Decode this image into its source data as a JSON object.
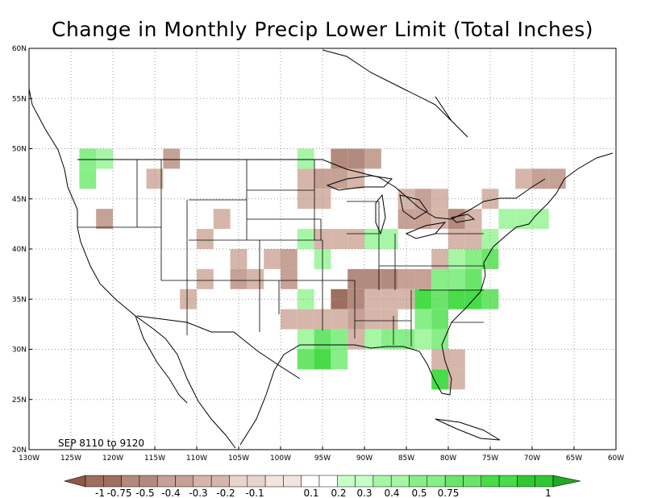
{
  "title": "Change in Monthly Precip Lower Limit (Total Inches)",
  "period": "SEP 8110 to 9120",
  "lat_labels": [
    "60N",
    "55N",
    "50N",
    "45N",
    "40N",
    "35N",
    "30N",
    "25N",
    "20N"
  ],
  "lon_labels": [
    "130W",
    "125W",
    "120W",
    "115W",
    "110W",
    "105W",
    "100W",
    "95W",
    "90W",
    "85W",
    "80W",
    "75W",
    "70W",
    "65W",
    "60W"
  ],
  "colorbar": {
    "labels": [
      "-1",
      "-0.75",
      "-0.5",
      "-0.4",
      "-0.3",
      "-0.2",
      "-0.1",
      "0.1",
      "0.2",
      "0.3",
      "0.4",
      "0.5",
      "0.75",
      "1"
    ],
    "colors": [
      "#8a5a46",
      "#9e6e5e",
      "#b38a7e",
      "#c6a196",
      "#d6b6aa",
      "#e8d4cc",
      "#ffffff",
      "#c8ffc8",
      "#a6f6a6",
      "#88ee88",
      "#6ae56a",
      "#48dc48",
      "#30c830",
      "#22a822"
    ]
  },
  "chart_data": {
    "type": "heatmap",
    "title": "Change in Monthly Precip Lower Limit (Total Inches)",
    "cells": [
      {
        "lon": -124,
        "lat": 48,
        "v": 0.3
      },
      {
        "lon": -124,
        "lat": 46,
        "v": 0.3
      },
      {
        "lon": -122,
        "lat": 48,
        "v": 0.2
      },
      {
        "lon": -122,
        "lat": 42,
        "v": -0.3
      },
      {
        "lon": -114,
        "lat": 48,
        "v": -0.3
      },
      {
        "lon": -116,
        "lat": 46,
        "v": -0.2
      },
      {
        "lon": -108,
        "lat": 42,
        "v": -0.2
      },
      {
        "lon": -110,
        "lat": 40,
        "v": -0.2
      },
      {
        "lon": -112,
        "lat": 34,
        "v": -0.2
      },
      {
        "lon": -110,
        "lat": 36,
        "v": -0.2
      },
      {
        "lon": -106,
        "lat": 38,
        "v": -0.2
      },
      {
        "lon": -106,
        "lat": 36,
        "v": -0.3
      },
      {
        "lon": -104,
        "lat": 36,
        "v": -0.2
      },
      {
        "lon": -102,
        "lat": 38,
        "v": -0.2
      },
      {
        "lon": -100,
        "lat": 38,
        "v": -0.3
      },
      {
        "lon": -100,
        "lat": 36,
        "v": -0.3
      },
      {
        "lon": -98,
        "lat": 48,
        "v": 0.2
      },
      {
        "lon": -98,
        "lat": 46,
        "v": -0.2
      },
      {
        "lon": -96,
        "lat": 46,
        "v": -0.3
      },
      {
        "lon": -98,
        "lat": 44,
        "v": -0.2
      },
      {
        "lon": -96,
        "lat": 44,
        "v": -0.2
      },
      {
        "lon": -94,
        "lat": 48,
        "v": -0.4
      },
      {
        "lon": -92,
        "lat": 48,
        "v": -0.4
      },
      {
        "lon": -90,
        "lat": 48,
        "v": -0.3
      },
      {
        "lon": -94,
        "lat": 46,
        "v": -0.3
      },
      {
        "lon": -92,
        "lat": 46,
        "v": -0.2
      },
      {
        "lon": -98,
        "lat": 40,
        "v": 0.2
      },
      {
        "lon": -96,
        "lat": 40,
        "v": -0.2
      },
      {
        "lon": -94,
        "lat": 40,
        "v": -0.2
      },
      {
        "lon": -92,
        "lat": 40,
        "v": -0.2
      },
      {
        "lon": -96,
        "lat": 38,
        "v": 0.2
      },
      {
        "lon": -92,
        "lat": 36,
        "v": -0.4
      },
      {
        "lon": -90,
        "lat": 36,
        "v": -0.4
      },
      {
        "lon": -88,
        "lat": 36,
        "v": -0.4
      },
      {
        "lon": -86,
        "lat": 36,
        "v": -0.3
      },
      {
        "lon": -84,
        "lat": 36,
        "v": -0.3
      },
      {
        "lon": -94,
        "lat": 34,
        "v": -0.5
      },
      {
        "lon": -92,
        "lat": 34,
        "v": -0.4
      },
      {
        "lon": -90,
        "lat": 34,
        "v": -0.2
      },
      {
        "lon": -88,
        "lat": 34,
        "v": -0.2
      },
      {
        "lon": -86,
        "lat": 34,
        "v": -0.2
      },
      {
        "lon": -90,
        "lat": 40,
        "v": 0.2
      },
      {
        "lon": -88,
        "lat": 40,
        "v": 0.2
      },
      {
        "lon": -98,
        "lat": 34,
        "v": 0.2
      },
      {
        "lon": -100,
        "lat": 32,
        "v": -0.2
      },
      {
        "lon": -98,
        "lat": 32,
        "v": -0.2
      },
      {
        "lon": -96,
        "lat": 32,
        "v": -0.2
      },
      {
        "lon": -94,
        "lat": 32,
        "v": -0.2
      },
      {
        "lon": -92,
        "lat": 32,
        "v": -0.3
      },
      {
        "lon": -90,
        "lat": 32,
        "v": -0.2
      },
      {
        "lon": -88,
        "lat": 32,
        "v": -0.2
      },
      {
        "lon": -98,
        "lat": 30,
        "v": 0.2
      },
      {
        "lon": -96,
        "lat": 30,
        "v": 0.4
      },
      {
        "lon": -94,
        "lat": 30,
        "v": 0.3
      },
      {
        "lon": -92,
        "lat": 30,
        "v": -0.2
      },
      {
        "lon": -90,
        "lat": 30,
        "v": 0.2
      },
      {
        "lon": -88,
        "lat": 30,
        "v": 0.3
      },
      {
        "lon": -86,
        "lat": 30,
        "v": 0.3
      },
      {
        "lon": -98,
        "lat": 28,
        "v": 0.4
      },
      {
        "lon": -96,
        "lat": 28,
        "v": 0.5
      },
      {
        "lon": -94,
        "lat": 28,
        "v": 0.3
      },
      {
        "lon": -86,
        "lat": 44,
        "v": -0.2
      },
      {
        "lon": -84,
        "lat": 44,
        "v": -0.3
      },
      {
        "lon": -82,
        "lat": 44,
        "v": -0.2
      },
      {
        "lon": -86,
        "lat": 42,
        "v": -0.3
      },
      {
        "lon": -84,
        "lat": 42,
        "v": -0.3
      },
      {
        "lon": -82,
        "lat": 42,
        "v": -0.2
      },
      {
        "lon": -80,
        "lat": 42,
        "v": -0.4
      },
      {
        "lon": -78,
        "lat": 42,
        "v": -0.2
      },
      {
        "lon": -76,
        "lat": 44,
        "v": -0.2
      },
      {
        "lon": -80,
        "lat": 40,
        "v": -0.2
      },
      {
        "lon": -78,
        "lat": 40,
        "v": -0.2
      },
      {
        "lon": -76,
        "lat": 40,
        "v": 0.2
      },
      {
        "lon": -82,
        "lat": 38,
        "v": -0.2
      },
      {
        "lon": -80,
        "lat": 38,
        "v": 0.2
      },
      {
        "lon": -78,
        "lat": 38,
        "v": 0.3
      },
      {
        "lon": -76,
        "lat": 38,
        "v": 0.4
      },
      {
        "lon": -82,
        "lat": 36,
        "v": 0.3
      },
      {
        "lon": -80,
        "lat": 36,
        "v": 0.3
      },
      {
        "lon": -78,
        "lat": 36,
        "v": 0.4
      },
      {
        "lon": -84,
        "lat": 34,
        "v": 0.5
      },
      {
        "lon": -82,
        "lat": 34,
        "v": 0.4
      },
      {
        "lon": -80,
        "lat": 34,
        "v": 0.5
      },
      {
        "lon": -78,
        "lat": 34,
        "v": 0.5
      },
      {
        "lon": -76,
        "lat": 34,
        "v": 0.4
      },
      {
        "lon": -84,
        "lat": 32,
        "v": 0.3
      },
      {
        "lon": -82,
        "lat": 32,
        "v": 0.4
      },
      {
        "lon": -84,
        "lat": 30,
        "v": 0.2
      },
      {
        "lon": -82,
        "lat": 30,
        "v": 0.3
      },
      {
        "lon": -82,
        "lat": 28,
        "v": -0.2
      },
      {
        "lon": -80,
        "lat": 28,
        "v": -0.2
      },
      {
        "lon": -82,
        "lat": 26,
        "v": 0.5
      },
      {
        "lon": -80,
        "lat": 26,
        "v": -0.2
      },
      {
        "lon": -74,
        "lat": 42,
        "v": 0.2
      },
      {
        "lon": -72,
        "lat": 42,
        "v": 0.2
      },
      {
        "lon": -70,
        "lat": 42,
        "v": 0.2
      },
      {
        "lon": -72,
        "lat": 46,
        "v": -0.2
      },
      {
        "lon": -70,
        "lat": 46,
        "v": -0.3
      },
      {
        "lon": -68,
        "lat": 46,
        "v": -0.3
      }
    ]
  }
}
